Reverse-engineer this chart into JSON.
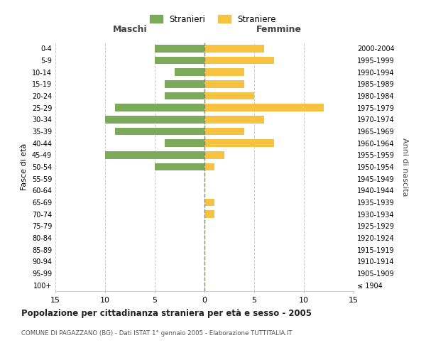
{
  "age_groups": [
    "100+",
    "95-99",
    "90-94",
    "85-89",
    "80-84",
    "75-79",
    "70-74",
    "65-69",
    "60-64",
    "55-59",
    "50-54",
    "45-49",
    "40-44",
    "35-39",
    "30-34",
    "25-29",
    "20-24",
    "15-19",
    "10-14",
    "5-9",
    "0-4"
  ],
  "birth_years": [
    "≤ 1904",
    "1905-1909",
    "1910-1914",
    "1915-1919",
    "1920-1924",
    "1925-1929",
    "1930-1934",
    "1935-1939",
    "1940-1944",
    "1945-1949",
    "1950-1954",
    "1955-1959",
    "1960-1964",
    "1965-1969",
    "1970-1974",
    "1975-1979",
    "1980-1984",
    "1985-1989",
    "1990-1994",
    "1995-1999",
    "2000-2004"
  ],
  "maschi": [
    0,
    0,
    0,
    0,
    0,
    0,
    0,
    0,
    0,
    0,
    5,
    10,
    4,
    9,
    10,
    9,
    4,
    4,
    3,
    5,
    5
  ],
  "femmine": [
    0,
    0,
    0,
    0,
    0,
    0,
    1,
    1,
    0,
    0,
    1,
    2,
    7,
    4,
    6,
    12,
    5,
    4,
    4,
    7,
    6
  ],
  "color_maschi": "#7aaa5a",
  "color_femmine": "#f5c242",
  "title": "Popolazione per cittadinanza straniera per età e sesso - 2005",
  "subtitle": "COMUNE DI PAGAZZANO (BG) - Dati ISTAT 1° gennaio 2005 - Elaborazione TUTTITALIA.IT",
  "ylabel_left": "Fasce di età",
  "ylabel_right": "Anni di nascita",
  "xlim": 15,
  "legend_stranieri": "Stranieri",
  "legend_straniere": "Straniere",
  "maschi_label": "Maschi",
  "femmine_label": "Femmine",
  "background_color": "#ffffff",
  "grid_color": "#cccccc"
}
